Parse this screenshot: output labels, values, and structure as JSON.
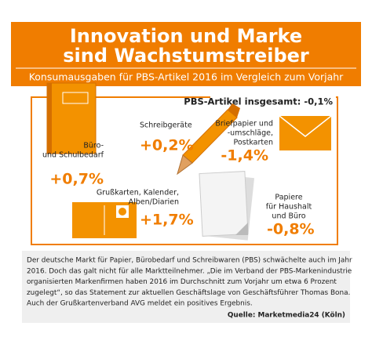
{
  "header": {
    "title": [
      "Innovation und Marke",
      "sind Wachstumstreiber"
    ],
    "subtitle": "Konsumausgaben für PBS-Artikel 2016 im Vergleich zum Vorjahr"
  },
  "total": "PBS-Artikel insgesamt: -0,1%",
  "items": [
    {
      "label": [
        "Büro-",
        "und Schulbedarf"
      ],
      "change": "+0,7%"
    },
    {
      "label": [
        "Schreibgeräte"
      ],
      "change": "+0,2%"
    },
    {
      "label": [
        "Briefpapier und",
        "-umschläge,",
        "Postkarten"
      ],
      "change": "-1,4%"
    },
    {
      "label": [
        "Grußkarten, Kalender,",
        "Alben/Diarien"
      ],
      "change": "+1,7%"
    },
    {
      "label": [
        "Papiere",
        "für Haushalt",
        "und Büro"
      ],
      "change": "-0,8%"
    }
  ],
  "body": [
    "Der deutsche Markt für Papier, Bürobedarf und Schreibwaren (PBS) schwächelte auch im Jahr",
    "2016. Doch das galt nicht für alle Marktteilnehmer. „Die im Verband der PBS-Markenindustrie",
    "organisierten Markenfirmen haben 2016 im Durchschnitt zum Vorjahr um etwa 6 Prozent",
    "zugelegt“, so das Statement zur aktuellen Geschäftslage von Geschäftsführer Thomas Bona.",
    "Auch der Grußkartenverband AVG meldet ein positives Ergebnis."
  ],
  "source": "Quelle: Marketmedia24 (Köln)"
}
